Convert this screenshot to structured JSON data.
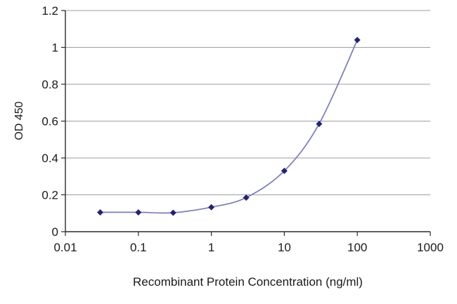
{
  "chart_data": {
    "type": "line",
    "title": "",
    "xlabel": "Recombinant Protein Concentration (ng/ml)",
    "ylabel": "OD 450",
    "x_scale": "log",
    "xlim": [
      0.01,
      1000
    ],
    "ylim": [
      0,
      1.2
    ],
    "x": [
      0.03,
      0.1,
      0.3,
      1,
      3,
      10,
      30,
      100
    ],
    "values": [
      0.105,
      0.105,
      0.103,
      0.133,
      0.185,
      0.33,
      0.585,
      1.04
    ],
    "xticks": [
      0.01,
      0.1,
      1,
      10,
      100,
      1000
    ],
    "xtick_labels": [
      "0.01",
      "0.1",
      "1",
      "10",
      "100",
      "1000"
    ],
    "yticks": [
      0,
      0.2,
      0.4,
      0.6,
      0.8,
      1,
      1.2
    ],
    "ytick_labels": [
      "0",
      "0.2",
      "0.4",
      "0.6",
      "0.8",
      "1",
      "1.2"
    ],
    "grid": "horizontal",
    "legend": "none",
    "marker_shape": "diamond",
    "colors": {
      "line": "#7a7ac2",
      "marker": "#22227a",
      "grid": "#9e9e9e",
      "axis": "#2b2b2b",
      "text": "#1a1a1a",
      "background": "#ffffff"
    }
  }
}
